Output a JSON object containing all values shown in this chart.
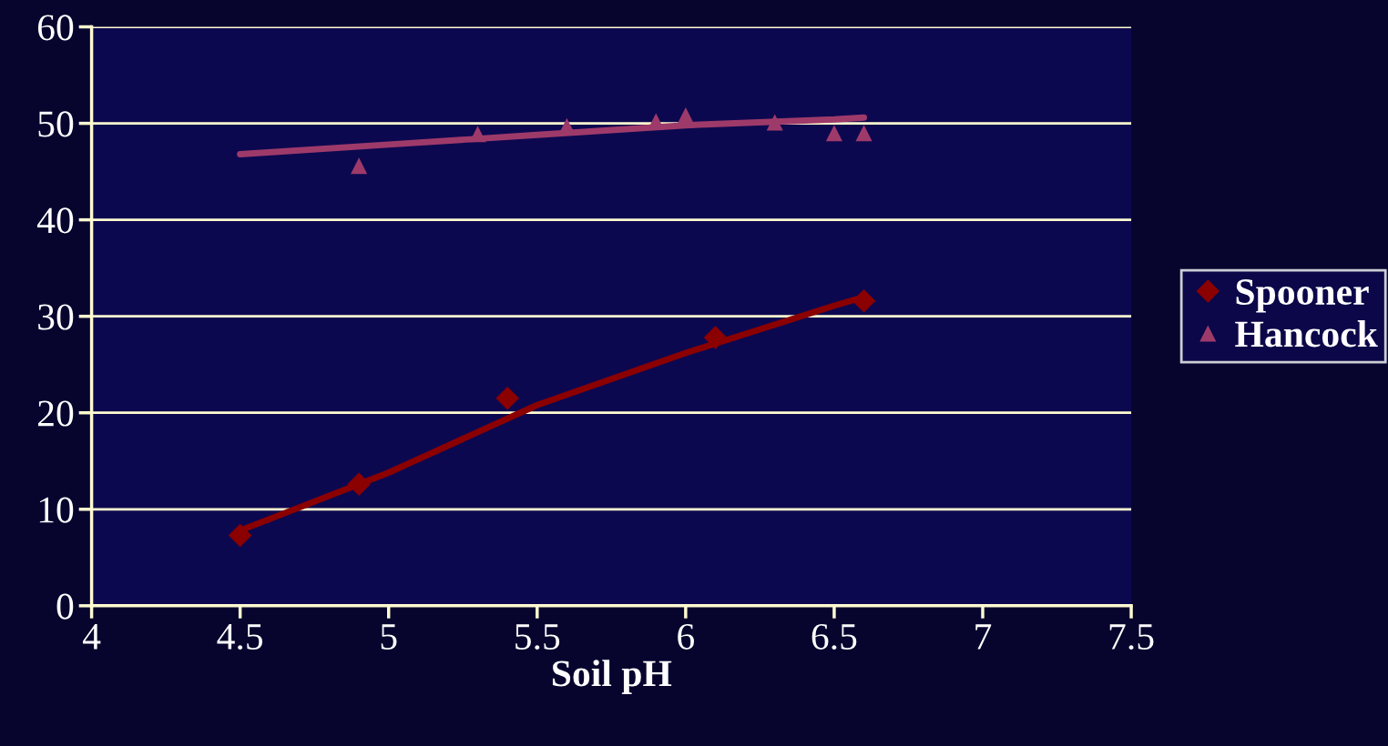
{
  "chart_data": {
    "type": "scatter",
    "xlabel": "Soil pH",
    "xlim": [
      4,
      7.5
    ],
    "xticks": [
      4,
      4.5,
      5,
      5.5,
      6,
      6.5,
      7,
      7.5
    ],
    "ylim": [
      0,
      60
    ],
    "yticks": [
      0,
      10,
      20,
      30,
      40,
      50,
      60
    ],
    "grid": "y",
    "legend": "right",
    "series": [
      {
        "name": "Spooner",
        "color": "#8b0000",
        "marker": "diamond",
        "x": [
          4.5,
          4.9,
          5.4,
          6.1,
          6.6
        ],
        "values": [
          7.3,
          12.6,
          21.5,
          27.8,
          31.6
        ]
      },
      {
        "name": "Hancock",
        "color": "#9e3a6a",
        "marker": "triangle",
        "x": [
          4.9,
          5.3,
          5.6,
          5.9,
          6.0,
          6.3,
          6.5,
          6.6
        ],
        "values": [
          45.6,
          48.9,
          49.7,
          50.2,
          50.8,
          50.1,
          49.0,
          49.0
        ]
      },
      {
        "type": "line",
        "color": "#8b0000",
        "x": [
          4.5,
          5.0,
          5.5,
          6.0,
          6.5,
          6.6
        ],
        "values": [
          7.8,
          13.8,
          20.8,
          26.2,
          31.1,
          32.0
        ]
      },
      {
        "type": "line",
        "color": "#9e3a6a",
        "x": [
          4.5,
          5.0,
          5.5,
          6.0,
          6.5,
          6.6
        ],
        "values": [
          46.8,
          47.8,
          48.8,
          49.8,
          50.4,
          50.6
        ]
      }
    ]
  }
}
